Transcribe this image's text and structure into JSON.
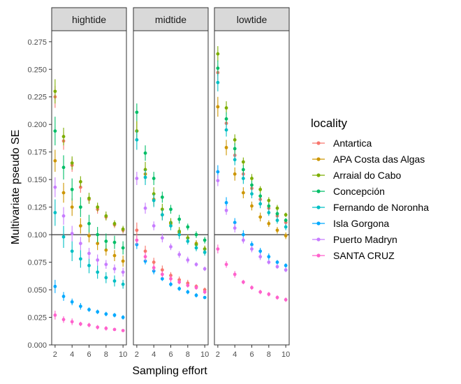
{
  "chart_data": {
    "type": "scatter",
    "xlabel": "Sampling effort",
    "ylabel": "Multivariate pseudo SE",
    "xlim": [
      1.6,
      10.4
    ],
    "ylim": [
      0,
      0.285
    ],
    "x_ticks": [
      2,
      4,
      6,
      8,
      10
    ],
    "y_ticks": [
      0.0,
      0.025,
      0.05,
      0.075,
      0.1,
      0.125,
      0.15,
      0.175,
      0.2,
      0.225,
      0.25,
      0.275
    ],
    "y_tick_labels": [
      "0.000",
      "0.025",
      "0.050",
      "0.075",
      "0.100",
      "0.125",
      "0.150",
      "0.175",
      "0.200",
      "0.225",
      "0.250",
      "0.275"
    ],
    "reference_line": 0.1,
    "grid": false,
    "legend_title": "locality",
    "legend_position": "right",
    "x": [
      2,
      3,
      4,
      5,
      6,
      7,
      8,
      9,
      10
    ],
    "panels": [
      {
        "label": "hightide",
        "series": [
          {
            "name": "Antartica",
            "color": "#F8766D",
            "values": [
              0.225,
              0.185,
              0.163,
              0.143,
              0.132,
              0.123,
              0.116,
              0.109,
              0.104
            ],
            "err": [
              0.01,
              0.008,
              0.006,
              0.005,
              0.004,
              0.004,
              0.003,
              0.003,
              0.003
            ]
          },
          {
            "name": "APA Costa das Algas",
            "color": "#CD9600",
            "values": [
              0.167,
              0.138,
              0.125,
              0.108,
              0.099,
              0.092,
              0.086,
              0.081,
              0.076
            ],
            "err": [
              0.01,
              0.009,
              0.008,
              0.007,
              0.006,
              0.006,
              0.005,
              0.005,
              0.005
            ]
          },
          {
            "name": "Arraial do Cabo",
            "color": "#7CAE00",
            "values": [
              0.23,
              0.189,
              0.165,
              0.148,
              0.133,
              0.125,
              0.117,
              0.11,
              0.105
            ],
            "err": [
              0.011,
              0.008,
              0.006,
              0.005,
              0.005,
              0.004,
              0.004,
              0.003,
              0.003
            ]
          },
          {
            "name": "Concepción",
            "color": "#00BE67",
            "values": [
              0.194,
              0.161,
              0.141,
              0.125,
              0.11,
              0.1,
              0.094,
              0.093,
              0.088
            ],
            "err": [
              0.013,
              0.011,
              0.01,
              0.009,
              0.008,
              0.007,
              0.007,
              0.006,
              0.006
            ]
          },
          {
            "name": "Fernando de Noronha",
            "color": "#00BFC4",
            "values": [
              0.12,
              0.098,
              0.085,
              0.078,
              0.072,
              0.066,
              0.061,
              0.058,
              0.055
            ],
            "err": [
              0.012,
              0.01,
              0.009,
              0.008,
              0.007,
              0.006,
              0.005,
              0.005,
              0.004
            ]
          },
          {
            "name": "Isla Gorgona",
            "color": "#00A9FF",
            "values": [
              0.053,
              0.044,
              0.039,
              0.035,
              0.032,
              0.03,
              0.028,
              0.027,
              0.025
            ],
            "err": [
              0.006,
              0.004,
              0.003,
              0.003,
              0.002,
              0.002,
              0.002,
              0.002,
              0.002
            ]
          },
          {
            "name": "Puerto Madryn",
            "color": "#C77CFF",
            "values": [
              0.143,
              0.117,
              0.101,
              0.092,
              0.083,
              0.077,
              0.073,
              0.069,
              0.066
            ],
            "err": [
              0.009,
              0.008,
              0.007,
              0.006,
              0.005,
              0.005,
              0.004,
              0.004,
              0.004
            ]
          },
          {
            "name": "SANTA CRUZ",
            "color": "#FF61CC",
            "values": [
              0.027,
              0.023,
              0.021,
              0.019,
              0.018,
              0.016,
              0.015,
              0.014,
              0.013
            ],
            "err": [
              0.004,
              0.003,
              0.003,
              0.002,
              0.002,
              0.002,
              0.002,
              0.001,
              0.001
            ]
          }
        ]
      },
      {
        "label": "midtide",
        "series": [
          {
            "name": "Antartica",
            "color": "#F8766D",
            "values": [
              0.104,
              0.085,
              0.075,
              0.068,
              0.063,
              0.059,
              0.056,
              0.053,
              0.05
            ],
            "err": [
              0.007,
              0.005,
              0.004,
              0.004,
              0.003,
              0.003,
              0.003,
              0.002,
              0.002
            ]
          },
          {
            "name": "APA Costa das Algas",
            "color": "#CD9600",
            "values": [
              0.194,
              0.155,
              0.132,
              0.118,
              0.11,
              0.102,
              0.097,
              0.092,
              0.087
            ],
            "err": [
              0.009,
              0.007,
              0.006,
              0.005,
              0.004,
              0.004,
              0.003,
              0.003,
              0.003
            ]
          },
          {
            "name": "Arraial do Cabo",
            "color": "#7CAE00",
            "values": [
              0.194,
              0.159,
              0.137,
              0.123,
              0.111,
              0.103,
              0.097,
              0.091,
              0.087
            ],
            "err": [
              0.009,
              0.007,
              0.006,
              0.005,
              0.004,
              0.004,
              0.003,
              0.003,
              0.003
            ]
          },
          {
            "name": "Concepción",
            "color": "#00BE67",
            "values": [
              0.211,
              0.174,
              0.151,
              0.134,
              0.123,
              0.114,
              0.107,
              0.1,
              0.095
            ],
            "err": [
              0.008,
              0.007,
              0.006,
              0.005,
              0.004,
              0.004,
              0.003,
              0.003,
              0.003
            ]
          },
          {
            "name": "Fernando de Noronha",
            "color": "#00BFC4",
            "values": [
              0.186,
              0.152,
              0.131,
              0.118,
              0.108,
              0.1,
              0.094,
              0.088,
              0.084
            ],
            "err": [
              0.009,
              0.007,
              0.006,
              0.005,
              0.004,
              0.004,
              0.003,
              0.003,
              0.003
            ]
          },
          {
            "name": "Isla Gorgona",
            "color": "#00A9FF",
            "values": [
              0.091,
              0.076,
              0.067,
              0.06,
              0.055,
              0.051,
              0.048,
              0.045,
              0.043
            ],
            "err": [
              0.004,
              0.003,
              0.003,
              0.002,
              0.002,
              0.002,
              0.002,
              0.002,
              0.001
            ]
          },
          {
            "name": "Puerto Madryn",
            "color": "#C77CFF",
            "values": [
              0.151,
              0.124,
              0.108,
              0.097,
              0.089,
              0.082,
              0.077,
              0.073,
              0.069
            ],
            "err": [
              0.006,
              0.005,
              0.004,
              0.004,
              0.003,
              0.003,
              0.003,
              0.002,
              0.002
            ]
          },
          {
            "name": "SANTA CRUZ",
            "color": "#FF61CC",
            "values": [
              0.095,
              0.08,
              0.07,
              0.064,
              0.06,
              0.057,
              0.054,
              0.052,
              0.048
            ],
            "err": [
              0.004,
              0.004,
              0.003,
              0.003,
              0.003,
              0.002,
              0.002,
              0.002,
              0.002
            ]
          }
        ]
      },
      {
        "label": "lowtide",
        "series": [
          {
            "name": "Antartica",
            "color": "#F8766D",
            "values": [
              0.247,
              0.201,
              0.172,
              0.155,
              0.142,
              0.132,
              0.124,
              0.117,
              0.111
            ],
            "err": [
              0.007,
              0.006,
              0.005,
              0.004,
              0.004,
              0.003,
              0.003,
              0.003,
              0.002
            ]
          },
          {
            "name": "APA Costa das Algas",
            "color": "#CD9600",
            "values": [
              0.216,
              0.179,
              0.155,
              0.138,
              0.126,
              0.116,
              0.11,
              0.104,
              0.099
            ],
            "err": [
              0.009,
              0.007,
              0.006,
              0.005,
              0.004,
              0.004,
              0.003,
              0.003,
              0.003
            ]
          },
          {
            "name": "Arraial do Cabo",
            "color": "#7CAE00",
            "values": [
              0.264,
              0.215,
              0.186,
              0.166,
              0.151,
              0.141,
              0.131,
              0.124,
              0.118
            ],
            "err": [
              0.007,
              0.006,
              0.005,
              0.004,
              0.004,
              0.003,
              0.003,
              0.003,
              0.002
            ]
          },
          {
            "name": "Concepción",
            "color": "#00BE67",
            "values": [
              0.251,
              0.205,
              0.178,
              0.159,
              0.145,
              0.135,
              0.126,
              0.119,
              0.113
            ],
            "err": [
              0.007,
              0.006,
              0.005,
              0.004,
              0.004,
              0.003,
              0.003,
              0.003,
              0.002
            ]
          },
          {
            "name": "Fernando de Noronha",
            "color": "#00BFC4",
            "values": [
              0.238,
              0.195,
              0.168,
              0.151,
              0.137,
              0.128,
              0.12,
              0.113,
              0.107
            ],
            "err": [
              0.008,
              0.006,
              0.005,
              0.005,
              0.004,
              0.004,
              0.003,
              0.003,
              0.003
            ]
          },
          {
            "name": "Isla Gorgona",
            "color": "#00A9FF",
            "values": [
              0.157,
              0.129,
              0.111,
              0.1,
              0.091,
              0.085,
              0.08,
              0.075,
              0.072
            ],
            "err": [
              0.006,
              0.005,
              0.004,
              0.004,
              0.003,
              0.003,
              0.003,
              0.002,
              0.002
            ]
          },
          {
            "name": "Puerto Madryn",
            "color": "#C77CFF",
            "values": [
              0.149,
              0.122,
              0.106,
              0.095,
              0.087,
              0.08,
              0.075,
              0.071,
              0.068
            ],
            "err": [
              0.005,
              0.004,
              0.004,
              0.003,
              0.003,
              0.003,
              0.002,
              0.002,
              0.002
            ]
          },
          {
            "name": "SANTA CRUZ",
            "color": "#FF61CC",
            "values": [
              0.087,
              0.073,
              0.064,
              0.057,
              0.052,
              0.048,
              0.046,
              0.043,
              0.041
            ],
            "err": [
              0.004,
              0.003,
              0.003,
              0.002,
              0.002,
              0.002,
              0.002,
              0.002,
              0.002
            ]
          }
        ]
      }
    ]
  }
}
